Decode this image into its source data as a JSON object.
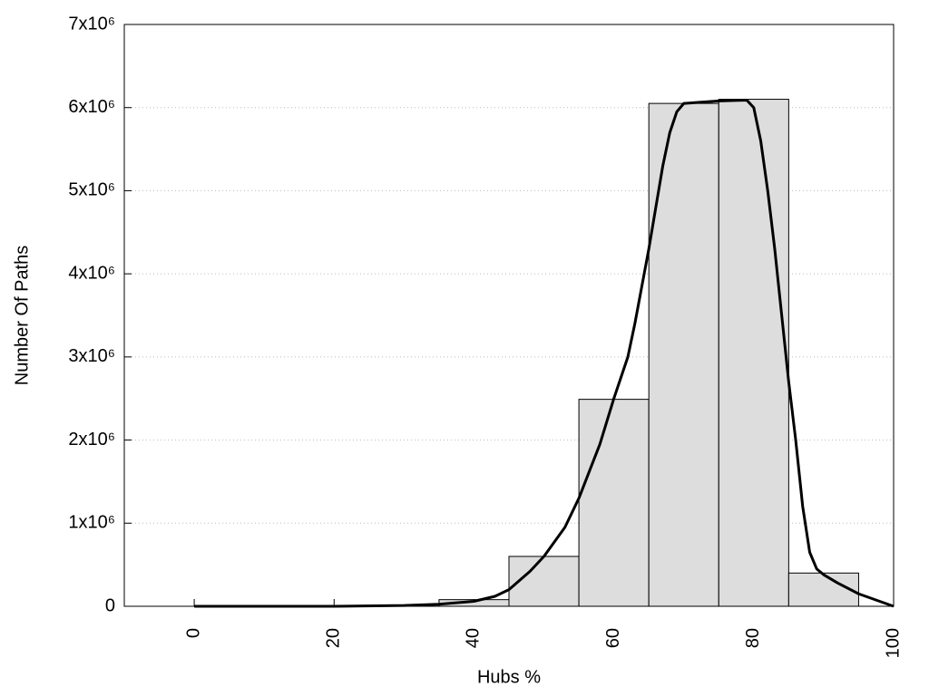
{
  "chart_data": {
    "type": "histogram",
    "xlabel": "Hubs %",
    "ylabel": "Number Of Paths",
    "bins": [
      35,
      45,
      55,
      65,
      75,
      85,
      95
    ],
    "counts": [
      80000,
      600000,
      2490000,
      6050000,
      6100000,
      400000
    ],
    "color": "#dddddd",
    "curve": {
      "color": "#000000",
      "x": [
        0,
        10,
        20,
        30,
        35,
        40,
        43,
        45,
        48,
        50,
        53,
        55,
        58,
        60,
        62,
        63,
        65,
        67,
        68,
        69,
        70,
        75,
        79,
        80,
        81,
        82,
        83,
        84,
        85,
        86,
        87,
        88,
        89,
        90,
        92,
        95,
        100
      ],
      "values": [
        0,
        0,
        0,
        10000,
        25000,
        60000,
        120000,
        200000,
        420000,
        600000,
        950000,
        1300000,
        1950000,
        2500000,
        3000000,
        3400000,
        4300000,
        5300000,
        5700000,
        5950000,
        6050000,
        6080000,
        6090000,
        6000000,
        5600000,
        5000000,
        4300000,
        3500000,
        2700000,
        2000000,
        1200000,
        650000,
        450000,
        380000,
        280000,
        150000,
        0
      ]
    },
    "xlim": [
      -10,
      100
    ],
    "xticks": [
      0,
      20,
      40,
      60,
      80,
      100
    ],
    "ylim": [
      0,
      7000000
    ],
    "yticks": [
      0,
      {
        "value": 1000000,
        "label": "1x10⁶"
      },
      {
        "value": 2000000,
        "label": "2x10⁶"
      },
      {
        "value": 3000000,
        "label": "3x10⁶"
      },
      {
        "value": 4000000,
        "label": "4x10⁶"
      },
      {
        "value": 5000000,
        "label": "5x10⁶"
      },
      {
        "value": 6000000,
        "label": "6x10⁶"
      },
      {
        "value": 7000000,
        "label": "7x10⁶"
      }
    ],
    "grid": true
  }
}
